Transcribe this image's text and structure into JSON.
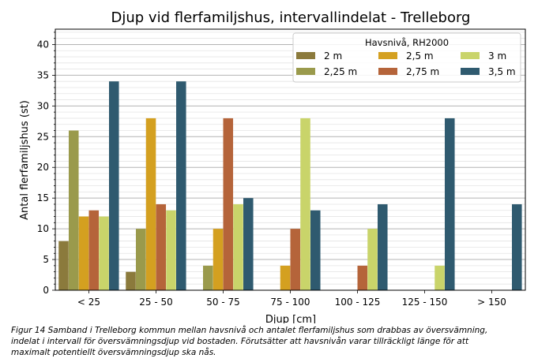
{
  "chart_data": {
    "type": "bar",
    "title": "Djup vid flerfamiljshus, intervallindelat - Trelleborg",
    "xlabel": "Djup [cm]",
    "ylabel": "Antal flerfamiljshus (st)",
    "ylim": [
      0,
      42.5
    ],
    "yticks": [
      0,
      5,
      10,
      15,
      20,
      25,
      30,
      35,
      40
    ],
    "grid": true,
    "legend_title": "Havsnivå, RH2000",
    "legend_position": "top-right",
    "categories": [
      "< 25",
      "25 - 50",
      "50 - 75",
      "75 - 100",
      "100 - 125",
      "125 - 150",
      "> 150"
    ],
    "series": [
      {
        "name": "2 m",
        "color": "#8b7a3c",
        "values": [
          8,
          3,
          0,
          0,
          0,
          0,
          0
        ]
      },
      {
        "name": "2,25 m",
        "color": "#9a9a4c",
        "values": [
          26,
          10,
          4,
          0,
          0,
          0,
          0
        ]
      },
      {
        "name": "2,5 m",
        "color": "#d4a020",
        "values": [
          12,
          28,
          10,
          4,
          0,
          0,
          0
        ]
      },
      {
        "name": "2,75 m",
        "color": "#b5643a",
        "values": [
          13,
          14,
          28,
          10,
          4,
          0,
          0
        ]
      },
      {
        "name": "3 m",
        "color": "#c9d46a",
        "values": [
          12,
          13,
          14,
          28,
          10,
          4,
          0
        ]
      },
      {
        "name": "3,5 m",
        "color": "#2f5a6f",
        "values": [
          34,
          34,
          15,
          13,
          14,
          28,
          14
        ]
      }
    ]
  },
  "caption": {
    "line1": "Figur 14 Samband i Trelleborg kommun mellan havsnivå och antalet flerfamiljshus som drabbas av översvämning,",
    "line2": "indelat i intervall för översvämningsdjup vid bostaden. Förutsätter att havsnivån varar tillräckligt länge för att",
    "line3": "maximalt potentiellt översvämningsdjup ska nås."
  }
}
